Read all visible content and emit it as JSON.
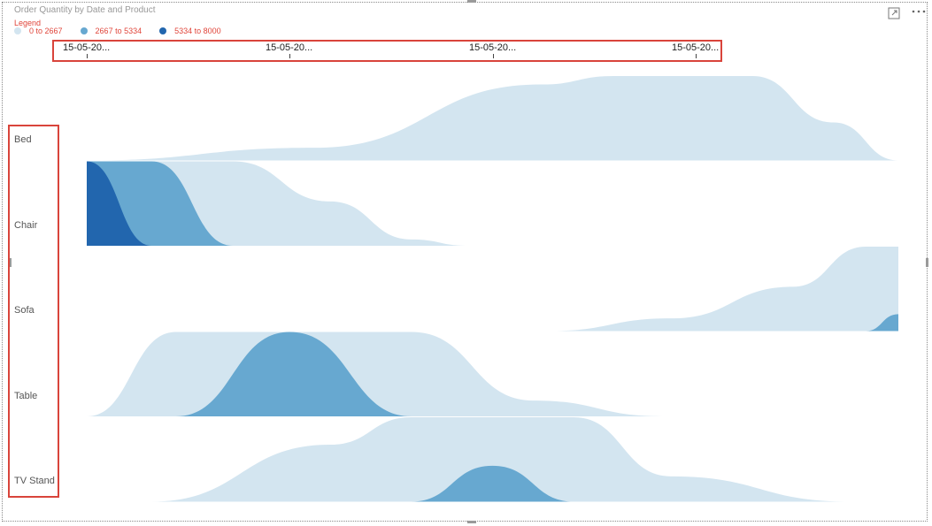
{
  "title": "Order Quantity by Date and Product",
  "legend": {
    "title": "Legend",
    "items": [
      {
        "label": "0 to 2667",
        "color": "#d3e5f0"
      },
      {
        "label": "2667 to 5334",
        "color": "#67a8d0"
      },
      {
        "label": "5334 to 8000",
        "color": "#2266ae"
      }
    ]
  },
  "toolbar": {
    "focus_icon": "focus-mode-icon",
    "more_icon": "more-options-icon"
  },
  "chart_data": {
    "type": "area",
    "x_ticks": [
      "15-05-20...",
      "15-05-20...",
      "15-05-20...",
      "15-05-20..."
    ],
    "categories": [
      "Bed",
      "Chair",
      "Sofa",
      "Table",
      "TV Stand"
    ],
    "bands": [
      {
        "name": "0 to 2667",
        "range": [
          0,
          2667
        ],
        "color": "#d3e5f0"
      },
      {
        "name": "2667 to 5334",
        "range": [
          2667,
          5334
        ],
        "color": "#67a8d0"
      },
      {
        "name": "5334 to 8000",
        "range": [
          5334,
          8000
        ],
        "color": "#2266ae"
      }
    ],
    "series": [
      {
        "name": "Bed",
        "x": [
          0.0,
          0.28,
          0.56,
          0.65,
          0.73,
          0.82,
          0.92,
          1.0
        ],
        "values": [
          0,
          400,
          2400,
          2667,
          2667,
          2667,
          1200,
          0
        ]
      },
      {
        "name": "Chair",
        "x": [
          0.0,
          0.08,
          0.18,
          0.3,
          0.4,
          0.47
        ],
        "values": [
          8000,
          5334,
          2667,
          1400,
          200,
          0
        ]
      },
      {
        "name": "Sofa",
        "x": [
          0.57,
          0.72,
          0.87,
          0.96,
          1.0
        ],
        "values": [
          0,
          400,
          1400,
          2667,
          3200
        ]
      },
      {
        "name": "Table",
        "x": [
          0.0,
          0.11,
          0.25,
          0.4,
          0.55,
          0.71
        ],
        "values": [
          0,
          2667,
          5334,
          2667,
          500,
          0
        ]
      },
      {
        "name": "TV Stand",
        "x": [
          0.08,
          0.3,
          0.4,
          0.5,
          0.6,
          0.72,
          0.94
        ],
        "values": [
          0,
          1800,
          2667,
          3800,
          2667,
          800,
          0
        ]
      }
    ]
  }
}
